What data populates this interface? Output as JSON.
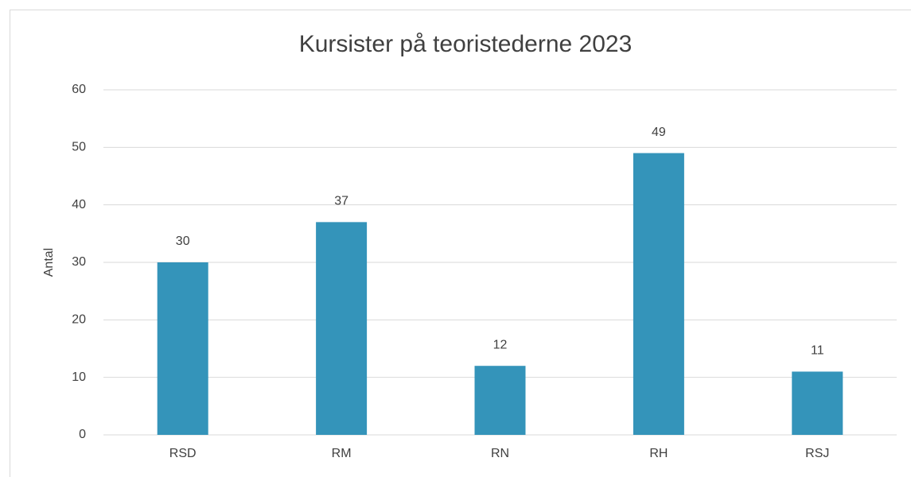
{
  "chart_data": {
    "type": "bar",
    "title": "Kursister på teoristederne 2023",
    "y_label": "Antal",
    "categories": [
      "RSD",
      "RM",
      "RN",
      "RH",
      "RSJ"
    ],
    "values": [
      30,
      37,
      12,
      49,
      11
    ],
    "color": "#3494ba",
    "ylim": [
      0,
      60
    ],
    "yticks": [
      0,
      10,
      20,
      30,
      40,
      50,
      60
    ],
    "grid": true,
    "data_labels": true
  }
}
